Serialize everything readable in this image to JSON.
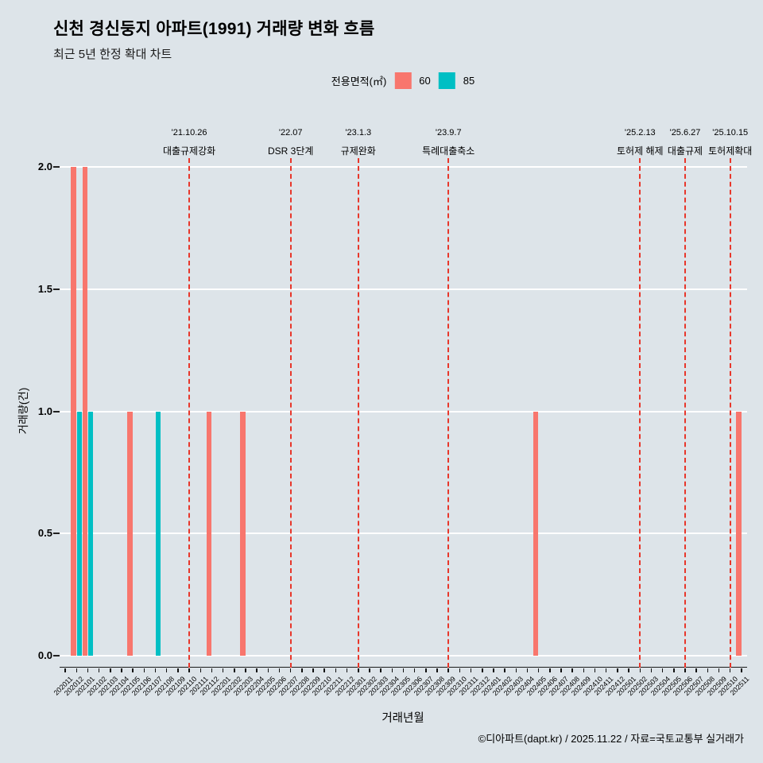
{
  "chart_data": {
    "type": "bar",
    "title": "신천 경신둥지 아파트(1991) 거래량 변화 흐름",
    "subtitle": "최근 5년 한정 확대 차트",
    "xlabel": "거래년월",
    "ylabel": "거래량(건)",
    "ylim": [
      0,
      2.05
    ],
    "yticks": [
      "0.0",
      "0.5",
      "1.0",
      "1.5",
      "2.0"
    ],
    "grid": "horizontal-major-white",
    "legend": {
      "label": "전용면적(㎡)",
      "position": "top"
    },
    "categories": [
      "202011",
      "202012",
      "202101",
      "202102",
      "202103",
      "202104",
      "202105",
      "202106",
      "202107",
      "202108",
      "202109",
      "202110",
      "202111",
      "202112",
      "202201",
      "202202",
      "202203",
      "202204",
      "202205",
      "202206",
      "202207",
      "202208",
      "202209",
      "202210",
      "202211",
      "202212",
      "202301",
      "202302",
      "202303",
      "202304",
      "202305",
      "202306",
      "202307",
      "202308",
      "202309",
      "202310",
      "202311",
      "202312",
      "202401",
      "202402",
      "202403",
      "202404",
      "202405",
      "202406",
      "202407",
      "202408",
      "202409",
      "202410",
      "202411",
      "202412",
      "202501",
      "202502",
      "202503",
      "202504",
      "202505",
      "202506",
      "202507",
      "202508",
      "202509",
      "202510",
      "202511"
    ],
    "series": [
      {
        "name": "60",
        "color": "#F8766D",
        "values": [
          0,
          2,
          2,
          0,
          0,
          0,
          1,
          0,
          0,
          0,
          0,
          0,
          0,
          1,
          0,
          0,
          1,
          0,
          0,
          0,
          0,
          0,
          0,
          0,
          0,
          0,
          0,
          0,
          0,
          0,
          0,
          0,
          0,
          0,
          0,
          0,
          0,
          0,
          0,
          0,
          0,
          0,
          1,
          0,
          0,
          0,
          0,
          0,
          0,
          0,
          0,
          0,
          0,
          0,
          0,
          0,
          0,
          0,
          0,
          0,
          1
        ]
      },
      {
        "name": "85",
        "color": "#00BFC4",
        "values": [
          0,
          1,
          1,
          0,
          0,
          0,
          0,
          0,
          1,
          0,
          0,
          0,
          0,
          0,
          0,
          0,
          0,
          0,
          0,
          0,
          0,
          0,
          0,
          0,
          0,
          0,
          0,
          0,
          0,
          0,
          0,
          0,
          0,
          0,
          0,
          0,
          0,
          0,
          0,
          0,
          0,
          0,
          0,
          0,
          0,
          0,
          0,
          0,
          0,
          0,
          0,
          0,
          0,
          0,
          0,
          0,
          0,
          0,
          0,
          0,
          0
        ]
      }
    ],
    "events": [
      {
        "month": "202110",
        "date": "'21.10.26",
        "label": "대출규제강화"
      },
      {
        "month": "202207",
        "date": "'22.07",
        "label": "DSR 3단계"
      },
      {
        "month": "202301",
        "date": "'23.1.3",
        "label": "규제완화"
      },
      {
        "month": "202309",
        "date": "'23.9.7",
        "label": "특례대출축소"
      },
      {
        "month": "202502",
        "date": "'25.2.13",
        "label": "토허제 해제"
      },
      {
        "month": "202506",
        "date": "'25.6.27",
        "label": "대출규제"
      },
      {
        "month": "202510",
        "date": "'25.10.15",
        "label": "토허제확대"
      }
    ]
  },
  "footer": "©디아파트(dapt.kr) / 2025.11.22 / 자료=국토교통부 실거래가",
  "colors": {
    "background": "#dde4e9",
    "gridline": "#ffffff",
    "event_line": "#e8362a",
    "axis": "#1b1b1b"
  }
}
